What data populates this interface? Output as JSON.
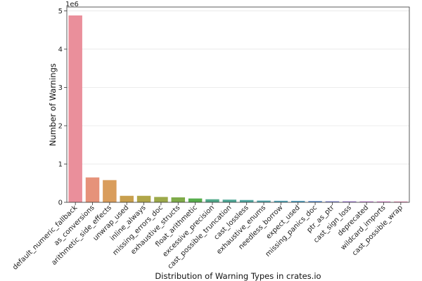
{
  "chart_data": {
    "type": "bar",
    "title": "",
    "xlabel": "Distribution of Warning Types in crates.io",
    "ylabel": "Number of Warnings",
    "y_multiplier_label": "1e6",
    "ylim": [
      0,
      5.1
    ],
    "yticks": [
      0,
      1,
      2,
      3,
      4,
      5
    ],
    "ytick_labels": [
      "0",
      "1",
      "2",
      "3",
      "4",
      "5"
    ],
    "grid": "horizontal",
    "legend": "none",
    "categories": [
      "default_numeric_fallback",
      "as_conversions",
      "arithmetic_side_effects",
      "unwrap_used",
      "inline_always",
      "missing_errors_doc",
      "exhaustive_structs",
      "float_arithmetic",
      "excessive_precision",
      "cast_possible_truncation",
      "cast_lossless",
      "exhaustive_enums",
      "needless_borrow",
      "expect_used",
      "missing_panics_doc",
      "ptr_as_ptr",
      "cast_sign_loss",
      "deprecated",
      "wildcard_imports",
      "cast_possible_wrap"
    ],
    "values": [
      4.88,
      0.65,
      0.58,
      0.17,
      0.17,
      0.14,
      0.13,
      0.1,
      0.08,
      0.07,
      0.06,
      0.045,
      0.04,
      0.038,
      0.035,
      0.03,
      0.028,
      0.026,
      0.024,
      0.022
    ],
    "colors": [
      "#ea8f9b",
      "#e6927a",
      "#d99d5c",
      "#c89f4e",
      "#b0a649",
      "#9ca94a",
      "#7fab49",
      "#56ad4b",
      "#50a889",
      "#4ea695",
      "#4ea69f",
      "#50a4a9",
      "#52a2b3",
      "#57a0c0",
      "#6c98cf",
      "#8e92d6",
      "#a98ad9",
      "#c98bd8",
      "#dd86ce",
      "#e88bb6"
    ]
  }
}
